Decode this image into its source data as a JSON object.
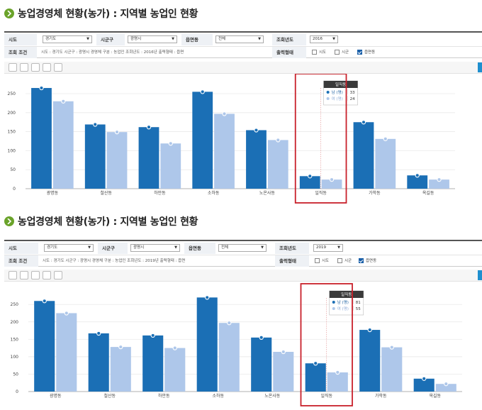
{
  "colors": {
    "male": "#1b6fb5",
    "female": "#aec7ea",
    "highlight": "#c8202a",
    "tooltip_header": "#3a3a3a",
    "title_bullet": "#6aa32a"
  },
  "panels": [
    {
      "title": "농업경영체 현황(농가) : 지역별 농업인 현황",
      "form": {
        "sido_label": "시도",
        "sido_value": "경기도",
        "sigungu_label": "시군구",
        "sigungu_value": "광명시",
        "eupmyeon_label": "읍면동",
        "eupmyeon_value": "전체",
        "year_label": "조회년도",
        "year_value": "2016",
        "cond_label": "조회 조건",
        "cond_text": "시도 : 경기도     시군구 : 광명시     경영체 구분 : 농업인     조회년도 : 2016년     출력형태 : 읍면",
        "output_label": "출력형태",
        "opt_sido": "시도",
        "opt_sigungu": "시군",
        "opt_eupmyeon": "읍면동"
      },
      "tooltip": {
        "title": "일직동",
        "male_label": "남 (명)",
        "male_value": "33",
        "female_label": "여 (명)",
        "female_value": "24"
      },
      "chart_data": {
        "type": "bar",
        "categories": [
          "광명동",
          "철산동",
          "하안동",
          "소하동",
          "노온사동",
          "일직동",
          "가학동",
          "옥길동"
        ],
        "series": [
          {
            "values": [
              265,
              169,
              162,
              255,
              154,
              33,
              175,
              35
            ]
          },
          {
            "values": [
              230,
              149,
              119,
              197,
              128,
              24,
              131,
              24
            ]
          }
        ],
        "yticks": [
          "0",
          "50",
          "100",
          "150",
          "200",
          "250"
        ],
        "ylim": [
          0,
          280
        ],
        "highlight_index": 5
      }
    },
    {
      "title": "농업경영체 현황(농가) : 지역별 농업인 현황",
      "form": {
        "sido_label": "시도",
        "sido_value": "경기도",
        "sigungu_label": "시군구",
        "sigungu_value": "광명시",
        "eupmyeon_label": "읍면동",
        "eupmyeon_value": "전체",
        "year_label": "조회년도",
        "year_value": "2019",
        "cond_label": "조회 조건",
        "cond_text": "시도 : 경기도     시군구 : 광명시     경영체 구분 : 농업인     조회년도 : 2019년     출력형태 : 읍면",
        "output_label": "출력형태",
        "opt_sido": "시도",
        "opt_sigungu": "시군",
        "opt_eupmyeon": "읍면동"
      },
      "tooltip": {
        "title": "일직동",
        "male_label": "남 (명)",
        "male_value": "81",
        "female_label": "여 (명)",
        "female_value": "55"
      },
      "chart_data": {
        "type": "bar",
        "categories": [
          "광명동",
          "철산동",
          "하안동",
          "소하동",
          "노온사동",
          "일직동",
          "가학동",
          "옥길동"
        ],
        "series": [
          {
            "values": [
              260,
              167,
              161,
              270,
              155,
              81,
              177,
              37
            ]
          },
          {
            "values": [
              225,
              128,
              125,
              197,
              114,
              55,
              127,
              22
            ]
          }
        ],
        "yticks": [
          "0",
          "50",
          "100",
          "150",
          "200",
          "250"
        ],
        "ylim": [
          0,
          285
        ],
        "highlight_index": 5
      }
    }
  ]
}
